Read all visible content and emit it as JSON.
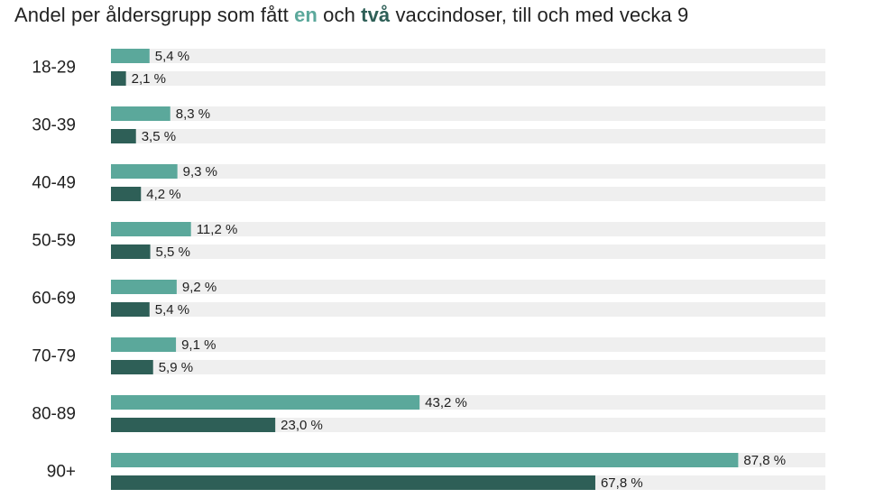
{
  "title": {
    "part1": "Andel per åldersgrupp som fått ",
    "one": "en",
    "part2": " och ",
    "two": "två",
    "part3": " vaccindoser, till och med vecka 9"
  },
  "colors": {
    "one_dose": "#5ba89b",
    "two_doses": "#2e5f57",
    "track": "#efefef"
  },
  "chart_data": {
    "type": "bar",
    "orientation": "horizontal",
    "categories": [
      "18-29",
      "30-39",
      "40-49",
      "50-59",
      "60-69",
      "70-79",
      "80-89",
      "90+"
    ],
    "series": [
      {
        "name": "en",
        "values": [
          5.4,
          8.3,
          9.3,
          11.2,
          9.2,
          9.1,
          43.2,
          87.8
        ],
        "labels": [
          "5,4 %",
          "8,3 %",
          "9,3 %",
          "11,2 %",
          "9,2 %",
          "9,1 %",
          "43,2 %",
          "87,8 %"
        ]
      },
      {
        "name": "två",
        "values": [
          2.1,
          3.5,
          4.2,
          5.5,
          5.4,
          5.9,
          23.0,
          67.8
        ],
        "labels": [
          "2,1 %",
          "3,5 %",
          "4,2 %",
          "5,5 %",
          "5,4 %",
          "5,9 %",
          "23,0 %",
          "67,8 %"
        ]
      }
    ],
    "xlim": [
      0,
      100
    ],
    "grid": false,
    "legend": "none"
  }
}
